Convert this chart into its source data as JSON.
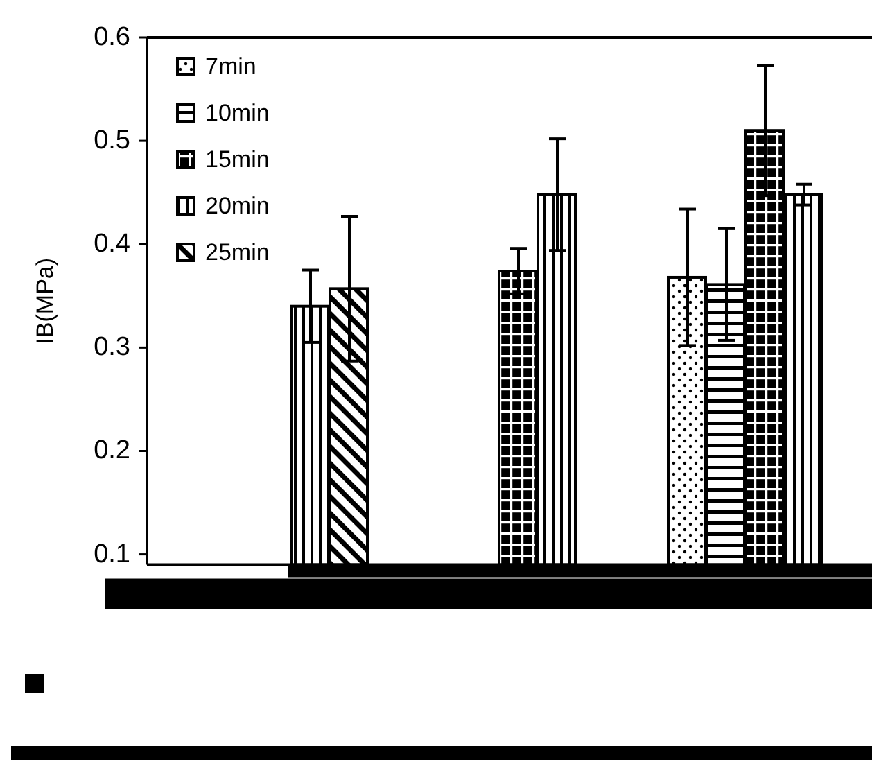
{
  "chart_data": {
    "type": "bar",
    "ylabel": "IB(MPa)",
    "categories": [
      null,
      null,
      null
    ],
    "series": [
      {
        "name": "7min",
        "color": "#000000",
        "values": [
          null,
          null,
          0.368
        ],
        "errors": [
          null,
          null,
          0.066
        ]
      },
      {
        "name": "10min",
        "color": "#000000",
        "values": [
          null,
          null,
          0.361
        ],
        "errors": [
          null,
          null,
          0.054
        ]
      },
      {
        "name": "15min",
        "color": "#000000",
        "values": [
          null,
          0.374,
          0.51
        ],
        "errors": [
          null,
          0.022,
          0.063
        ]
      },
      {
        "name": "20min",
        "color": "#000000",
        "values": [
          0.34,
          0.448,
          0.448
        ],
        "errors": [
          0.035,
          0.054,
          0.01
        ]
      },
      {
        "name": "25min",
        "color": "#000000",
        "values": [
          0.357,
          null,
          null
        ],
        "errors": [
          0.07,
          null,
          null
        ]
      }
    ],
    "ylim": [
      0.09,
      0.6
    ],
    "yticks": [
      0.1,
      0.2,
      0.3,
      0.4,
      0.5,
      0.6
    ],
    "legend": "top left",
    "grid": false
  }
}
